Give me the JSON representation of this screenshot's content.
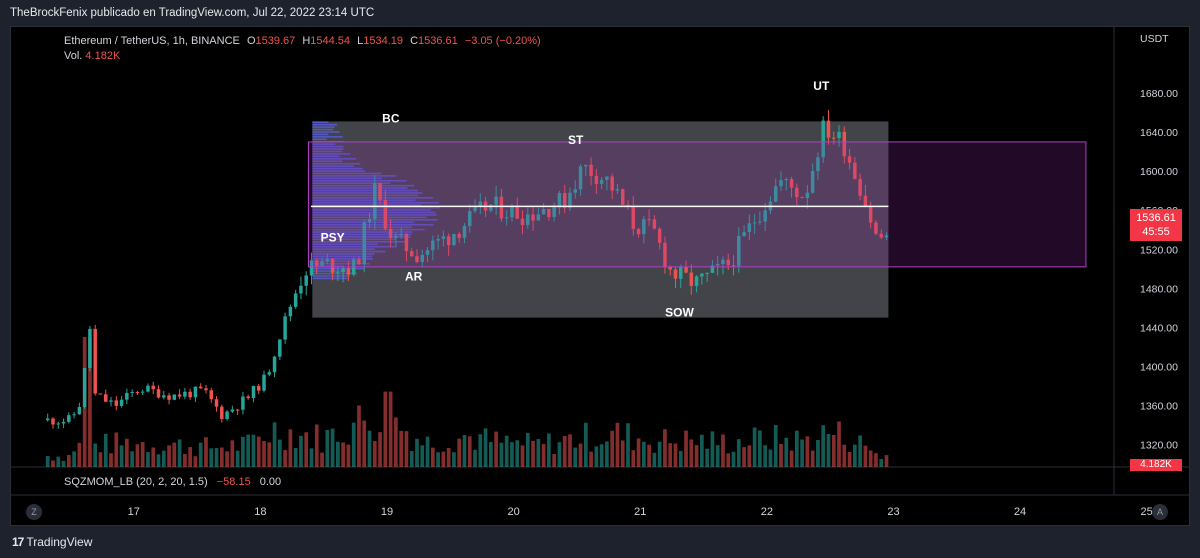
{
  "attribution": "TheBrockFenix publicado en TradingView.com, Jul 22, 2022 23:14 UTC",
  "legend": {
    "symbol": "Ethereum / TetherUS, 1h, BINANCE",
    "o_label": "O",
    "o_value": "1539.67",
    "h_label": "H",
    "h_value": "1544.54",
    "l_label": "L",
    "l_value": "1534.19",
    "c_label": "C",
    "c_value": "1536.61",
    "change": "−3.05 (−0.20%)",
    "vol_label": "Vol.",
    "vol_value": "4.182K"
  },
  "indicator": {
    "name": "SQZMOM_LB (20, 2, 20, 1.5)",
    "value1": "−58.15",
    "value2": "0.00"
  },
  "price_badge": {
    "price": "1536.61",
    "countdown": "45:55"
  },
  "volume_badge": "4.182K",
  "buttons": {
    "left": "Z",
    "right": "A"
  },
  "footer": {
    "logo_mark": "17",
    "logo_text": "TradingView"
  },
  "colors": {
    "up": "#26a69a",
    "down": "#ef5350",
    "range_box": "#787b86",
    "purple_box": "#9c27b0",
    "profile": "#5b5fe8",
    "midline": "#ffffff"
  },
  "chart_data": {
    "type": "candlestick",
    "currency": "USDT",
    "y_ticks": [
      1320,
      1360,
      1400,
      1440,
      1480,
      1520,
      1560,
      1600,
      1640,
      1680
    ],
    "y_tick_labels": [
      "1320.00",
      "1360.00",
      "1400.00",
      "1440.00",
      "1480.00",
      "1520.00",
      "1560.00",
      "1600.00",
      "1640.00",
      "1680.00"
    ],
    "ylim": [
      1297,
      1718
    ],
    "x_ticks": [
      17,
      18,
      19,
      20,
      21,
      22,
      23,
      24,
      25
    ],
    "x_tick_labels": [
      "17",
      "18",
      "19",
      "20",
      "21",
      "22",
      "23",
      "24",
      "25"
    ],
    "xlim": [
      16.03,
      25.35
    ],
    "last_close": 1536.61,
    "ohlc_key_points": [
      {
        "x": 16.5,
        "y": 1345
      },
      {
        "x": 16.63,
        "y": 1375
      },
      {
        "x": 16.85,
        "y": 1360
      },
      {
        "x": 17.05,
        "y": 1378
      },
      {
        "x": 17.3,
        "y": 1370
      },
      {
        "x": 17.55,
        "y": 1375
      },
      {
        "x": 17.7,
        "y": 1350
      },
      {
        "x": 17.9,
        "y": 1368
      },
      {
        "x": 18.05,
        "y": 1390
      },
      {
        "x": 18.2,
        "y": 1450
      },
      {
        "x": 18.35,
        "y": 1500
      },
      {
        "x": 18.55,
        "y": 1505
      },
      {
        "x": 18.75,
        "y": 1500
      },
      {
        "x": 18.9,
        "y": 1580
      },
      {
        "x": 19.05,
        "y": 1530
      },
      {
        "x": 19.25,
        "y": 1515
      },
      {
        "x": 19.5,
        "y": 1535
      },
      {
        "x": 19.8,
        "y": 1565
      },
      {
        "x": 20.1,
        "y": 1555
      },
      {
        "x": 20.4,
        "y": 1570
      },
      {
        "x": 20.55,
        "y": 1605
      },
      {
        "x": 20.75,
        "y": 1590
      },
      {
        "x": 20.95,
        "y": 1545
      },
      {
        "x": 21.1,
        "y": 1540
      },
      {
        "x": 21.25,
        "y": 1495
      },
      {
        "x": 21.45,
        "y": 1485
      },
      {
        "x": 21.7,
        "y": 1505
      },
      {
        "x": 21.9,
        "y": 1550
      },
      {
        "x": 22.1,
        "y": 1590
      },
      {
        "x": 22.3,
        "y": 1575
      },
      {
        "x": 22.45,
        "y": 1645
      },
      {
        "x": 22.6,
        "y": 1630
      },
      {
        "x": 22.75,
        "y": 1580
      },
      {
        "x": 22.87,
        "y": 1530
      },
      {
        "x": 22.98,
        "y": 1537
      }
    ],
    "volume": [
      {
        "x": 16.5,
        "v": 0.18
      },
      {
        "x": 16.7,
        "v": 0.2
      },
      {
        "x": 17.0,
        "v": 0.22
      },
      {
        "x": 17.3,
        "v": 0.2
      },
      {
        "x": 17.6,
        "v": 0.18
      },
      {
        "x": 17.9,
        "v": 0.2
      },
      {
        "x": 18.1,
        "v": 0.34
      },
      {
        "x": 18.3,
        "v": 0.3
      },
      {
        "x": 18.5,
        "v": 0.26
      },
      {
        "x": 18.8,
        "v": 0.42
      },
      {
        "x": 19.0,
        "v": 0.45
      },
      {
        "x": 19.3,
        "v": 0.22
      },
      {
        "x": 19.6,
        "v": 0.28
      },
      {
        "x": 19.9,
        "v": 0.22
      },
      {
        "x": 20.2,
        "v": 0.2
      },
      {
        "x": 20.5,
        "v": 0.26
      },
      {
        "x": 20.8,
        "v": 0.3
      },
      {
        "x": 21.1,
        "v": 0.24
      },
      {
        "x": 21.4,
        "v": 0.24
      },
      {
        "x": 21.7,
        "v": 0.22
      },
      {
        "x": 22.0,
        "v": 0.26
      },
      {
        "x": 22.3,
        "v": 0.24
      },
      {
        "x": 22.5,
        "v": 0.32
      },
      {
        "x": 22.7,
        "v": 0.24
      },
      {
        "x": 22.9,
        "v": 0.1
      }
    ],
    "volume_spikes": [
      {
        "x": 16.63,
        "v": 1.0
      },
      {
        "x": 19.0,
        "v": 0.58
      }
    ],
    "annotations": [
      {
        "text": "BC",
        "x": 19.03,
        "y": 1650
      },
      {
        "text": "ST",
        "x": 20.49,
        "y": 1628
      },
      {
        "text": "UT",
        "x": 22.43,
        "y": 1683
      },
      {
        "text": "PSY",
        "x": 18.57,
        "y": 1528
      },
      {
        "text": "AR",
        "x": 19.21,
        "y": 1488
      },
      {
        "text": "SOW",
        "x": 21.31,
        "y": 1451
      }
    ],
    "range_box": {
      "x0": 18.41,
      "x1": 22.96,
      "y0": 1450,
      "y1": 1651
    },
    "trading_range_box": {
      "x0": 18.38,
      "x1": 24.52,
      "y0": 1502,
      "y1": 1630
    },
    "midline": {
      "x0": 18.4,
      "x1": 22.96,
      "y": 1564
    },
    "volume_profile": {
      "x_start": 18.41,
      "y_top": 1651,
      "y_bottom": 1490,
      "peak_y": 1560
    }
  }
}
